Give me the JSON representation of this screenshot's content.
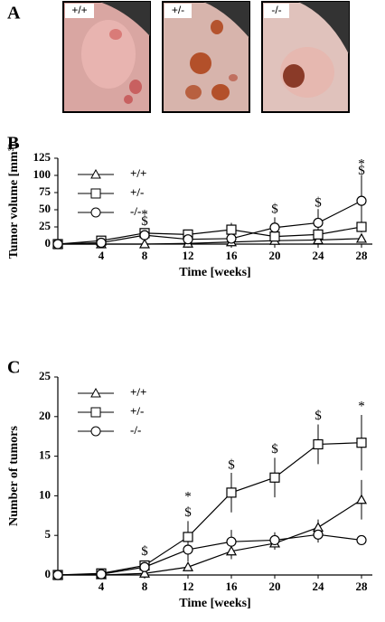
{
  "panels": [
    "A",
    "B",
    "C"
  ],
  "photos": {
    "labels": [
      "+/+",
      "+/-",
      "-/-"
    ]
  },
  "chart_data": [
    {
      "type": "line",
      "y_label": "Tumor volume [mm³]",
      "x_label": "Time [weeks]",
      "x": [
        0,
        4,
        8,
        12,
        16,
        20,
        24,
        28
      ],
      "xlim": [
        0,
        29
      ],
      "xticks": [
        4,
        8,
        12,
        16,
        20,
        24,
        28
      ],
      "ylim": [
        0,
        125
      ],
      "yticks": [
        0,
        25,
        50,
        75,
        100,
        125
      ],
      "legend": "upper left",
      "series": [
        {
          "name": "+/+",
          "color": "#000000",
          "marker": "triangle",
          "values": [
            0,
            0,
            0,
            1,
            3,
            5,
            6,
            8
          ],
          "errors": [
            0,
            0,
            0,
            0,
            1,
            1,
            1,
            2
          ]
        },
        {
          "name": "+/-",
          "color": "#000000",
          "marker": "square",
          "values": [
            0,
            5,
            16,
            14,
            21,
            11,
            14,
            25
          ],
          "errors": [
            0,
            2,
            6,
            4,
            10,
            4,
            5,
            8
          ]
        },
        {
          "name": "-/-",
          "color": "#000000",
          "marker": "circle",
          "values": [
            0,
            2,
            13,
            7,
            8,
            24,
            31,
            63
          ],
          "errors": [
            0,
            1,
            8,
            3,
            4,
            15,
            20,
            37
          ]
        }
      ],
      "annotations": [
        {
          "x": 8,
          "y": 32,
          "text": "$"
        },
        {
          "x": 8,
          "y": 42,
          "text": "*"
        },
        {
          "x": 20,
          "y": 50,
          "text": "$"
        },
        {
          "x": 24,
          "y": 59,
          "text": "$"
        },
        {
          "x": 28,
          "y": 106,
          "text": "$"
        },
        {
          "x": 28,
          "y": 116,
          "text": "*"
        }
      ]
    },
    {
      "type": "line",
      "y_label": "Number of tumors",
      "x_label": "Time [weeks]",
      "x": [
        0,
        4,
        8,
        12,
        16,
        20,
        24,
        28
      ],
      "xlim": [
        0,
        29
      ],
      "xticks": [
        4,
        8,
        12,
        16,
        20,
        24,
        28
      ],
      "ylim": [
        0,
        25
      ],
      "yticks": [
        0,
        5,
        10,
        15,
        20,
        25
      ],
      "legend": "upper left",
      "series": [
        {
          "name": "+/+",
          "color": "#000000",
          "marker": "triangle",
          "values": [
            0,
            0,
            0.2,
            1,
            3,
            4,
            6,
            9.5
          ],
          "errors": [
            0,
            0,
            0,
            0,
            1,
            0.8,
            1,
            2.5
          ]
        },
        {
          "name": "+/-",
          "color": "#000000",
          "marker": "square",
          "values": [
            0,
            0.2,
            1.2,
            4.8,
            10.4,
            12.3,
            16.5,
            16.7
          ],
          "errors": [
            0,
            0,
            0.5,
            2,
            2.5,
            2.5,
            2.5,
            3.5
          ]
        },
        {
          "name": "-/-",
          "color": "#000000",
          "marker": "circle",
          "values": [
            0,
            0.1,
            1,
            3.2,
            4.2,
            4.4,
            5.1,
            4.4
          ],
          "errors": [
            0,
            0,
            0.3,
            1.5,
            1.5,
            1,
            1,
            0.5
          ]
        }
      ],
      "annotations": [
        {
          "x": 8,
          "y": 2.9,
          "text": "$"
        },
        {
          "x": 12,
          "y": 7.8,
          "text": "$"
        },
        {
          "x": 12,
          "y": 9.8,
          "text": "*"
        },
        {
          "x": 16,
          "y": 13.8,
          "text": "$"
        },
        {
          "x": 20,
          "y": 15.8,
          "text": "$"
        },
        {
          "x": 24,
          "y": 20,
          "text": "$"
        },
        {
          "x": 28,
          "y": 21.2,
          "text": "*"
        }
      ]
    }
  ]
}
